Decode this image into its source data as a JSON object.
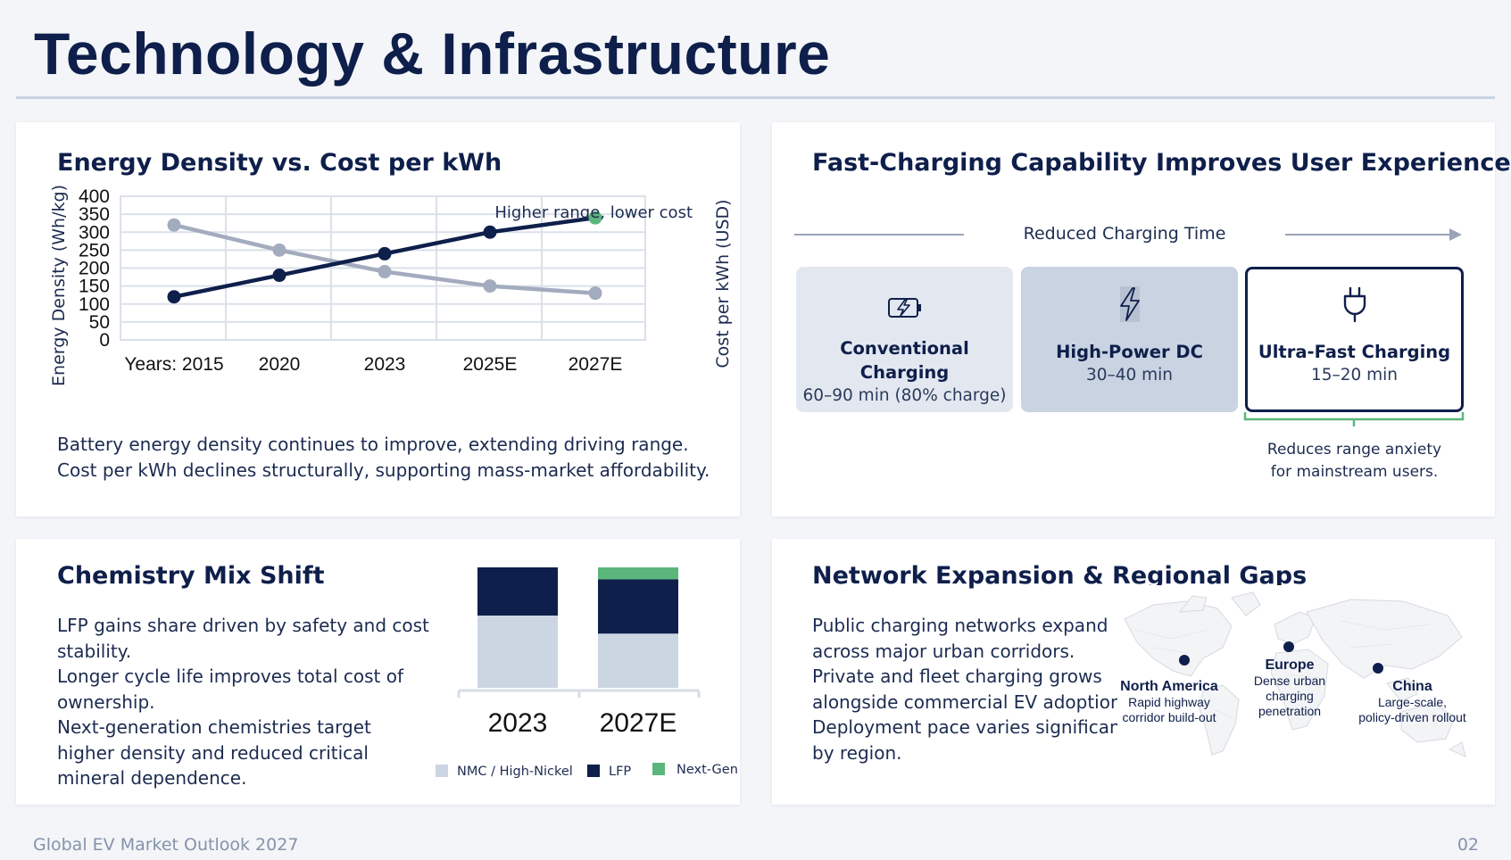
{
  "page": {
    "title": "Technology & Infrastructure",
    "footer_left": "Global EV Market Outlook 2027",
    "footer_right": "02"
  },
  "energy_card": {
    "title": "Energy Density vs. Cost per kWh",
    "annotation": "Higher range, lower cost",
    "body": [
      "Battery energy density continues to improve, extending driving range.",
      "Cost per kWh declines structurally, supporting mass-market affordability."
    ]
  },
  "charging_card": {
    "title": "Fast-Charging Capability Improves User Experience",
    "arrow_label": "Reduced Charging Time",
    "tiers": [
      {
        "name_lines": [
          "Conventional",
          "Charging"
        ],
        "time": "60–90 min (80% charge)",
        "icon": "battery-bolt-icon"
      },
      {
        "name_lines": [
          "High-Power DC"
        ],
        "time": "30–40 min",
        "icon": "lightning-bolt-icon"
      },
      {
        "name_lines": [
          "Ultra-Fast Charging"
        ],
        "time": "15–20 min",
        "icon": "plug-icon"
      }
    ],
    "note": [
      "Reduces range anxiety",
      "for mainstream users."
    ]
  },
  "chemistry_card": {
    "title": "Chemistry Mix Shift",
    "body": [
      "LFP gains share driven by safety and cost",
      "stability.",
      "Longer cycle life improves total cost of",
      "ownership.",
      "Next-generation chemistries target",
      "higher density and reduced critical",
      "mineral dependence."
    ]
  },
  "network_card": {
    "title": "Network Expansion & Regional Gaps",
    "body": [
      "Public charging networks expand",
      "across major urban corridors.",
      "Private and fleet charging grows",
      "alongside commercial EV adoption.",
      "Deployment pace varies significantl",
      "by region."
    ],
    "regions": [
      {
        "name": "North America",
        "desc": [
          "Rapid highway",
          "corridor build-out"
        ]
      },
      {
        "name": "Europe",
        "desc": [
          "Dense urban",
          "charging",
          "penetration"
        ]
      },
      {
        "name": "China",
        "desc": [
          "Large-scale,",
          "policy-driven rollout"
        ]
      }
    ]
  },
  "colors": {
    "navy": "#0f1f4b",
    "gray_line": "#a3acbe",
    "green": "#5bb67c",
    "light_nmc": "#ccd5e2",
    "box1": "#e3e8f0",
    "box2": "#c9d3e1"
  },
  "chart_data": [
    {
      "type": "line",
      "title": "Energy Density vs. Cost per kWh",
      "categories": [
        "Years: 2015",
        "2020",
        "2023",
        "2025E",
        "2027E"
      ],
      "ylabel": "Energy Density (Wh/kg)",
      "y2label": "Cost per kWh (USD)",
      "ylim": [
        0,
        400
      ],
      "yticks": [
        0,
        50,
        100,
        150,
        200,
        250,
        300,
        350,
        400
      ],
      "grid": true,
      "series": [
        {
          "name": "Energy Density (Wh/kg)",
          "values": [
            120,
            180,
            240,
            300,
            340
          ],
          "color": "#0f1f4b"
        },
        {
          "name": "Cost per kWh (USD)",
          "values": [
            320,
            250,
            190,
            150,
            130
          ],
          "color": "#a3acbe"
        }
      ]
    },
    {
      "type": "bar",
      "stacked": true,
      "title": "Chemistry Mix Shift",
      "categories": [
        "2023",
        "2027E"
      ],
      "series": [
        {
          "name": "NMC / High-Nickel",
          "values": [
            60,
            45
          ],
          "color": "#ccd5e2"
        },
        {
          "name": "LFP",
          "values": [
            40,
            45
          ],
          "color": "#0f1f4b"
        },
        {
          "name": "Next-Gen",
          "values": [
            0,
            10
          ],
          "color": "#5bb67c"
        }
      ],
      "ylim": [
        0,
        100
      ]
    }
  ]
}
